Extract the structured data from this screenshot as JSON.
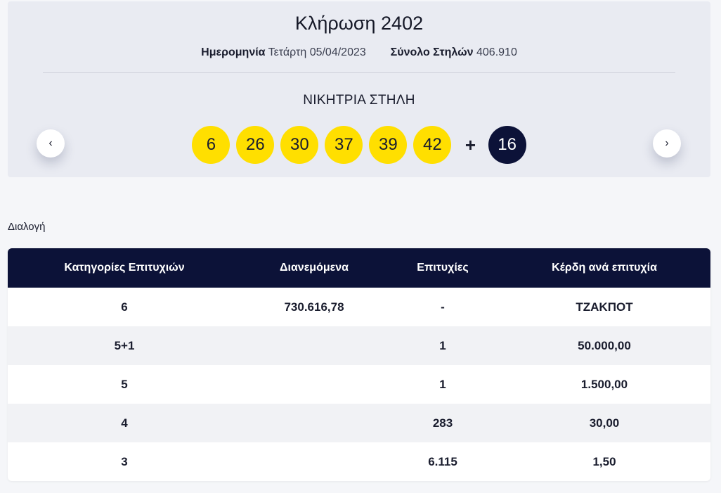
{
  "draw": {
    "title": "Κλήρωση 2402",
    "date_label": "Ημερομηνία",
    "date_value": "Τετάρτη 05/04/2023",
    "total_label": "Σύνολο Στηλών",
    "total_value": "406.910",
    "winning_title": "ΝΙΚΗΤΡΙΑ ΣΤΗΛΗ",
    "numbers": [
      "6",
      "26",
      "30",
      "37",
      "39",
      "42"
    ],
    "plus": "+",
    "joker": "16",
    "prev_icon": "chevron-left-icon",
    "next_icon": "chevron-right-icon",
    "prev_glyph": "‹",
    "next_glyph": "›"
  },
  "section": {
    "label": "Διαλογή"
  },
  "table": {
    "headers": [
      "Κατηγορίες Επιτυχιών",
      "Διανεμόμενα",
      "Επιτυχίες",
      "Κέρδη ανά επιτυχία"
    ],
    "rows": [
      [
        "6",
        "730.616,78",
        "-",
        "ΤΖΑΚΠΟΤ"
      ],
      [
        "5+1",
        "",
        "1",
        "50.000,00"
      ],
      [
        "5",
        "",
        "1",
        "1.500,00"
      ],
      [
        "4",
        "",
        "283",
        "30,00"
      ],
      [
        "3",
        "",
        "6.115",
        "1,50"
      ]
    ]
  },
  "colors": {
    "ball_yellow": "#ffdf00",
    "joker_navy": "#0c1238",
    "header_navy": "#0c1238"
  }
}
